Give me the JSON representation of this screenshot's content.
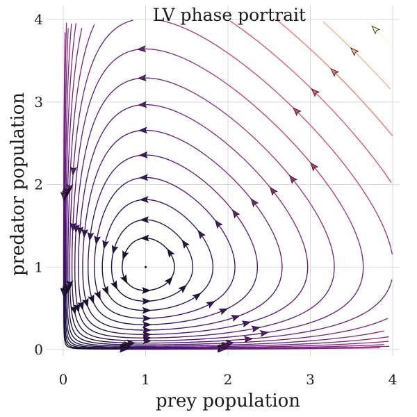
{
  "chart_data": {
    "type": "streamplot",
    "title": "LV phase portrait",
    "xlabel": "prey population",
    "ylabel": "predator population",
    "xlim": [
      0,
      4
    ],
    "ylim": [
      0,
      4
    ],
    "xticks": [
      0,
      1,
      2,
      3,
      4
    ],
    "yticks": [
      0,
      1,
      2,
      3,
      4
    ],
    "grid": true,
    "equilibrium": {
      "x": 1,
      "y": 1
    },
    "colormap": "magma",
    "color_encodes": "speed",
    "stream_levels": [
      0.05,
      0.12,
      0.22,
      0.35,
      0.5,
      0.68,
      0.88,
      1.1,
      1.35,
      1.62,
      1.92,
      2.25,
      2.6,
      2.98,
      3.4,
      3.85,
      4.35
    ],
    "arrows_per_stream": 6
  }
}
